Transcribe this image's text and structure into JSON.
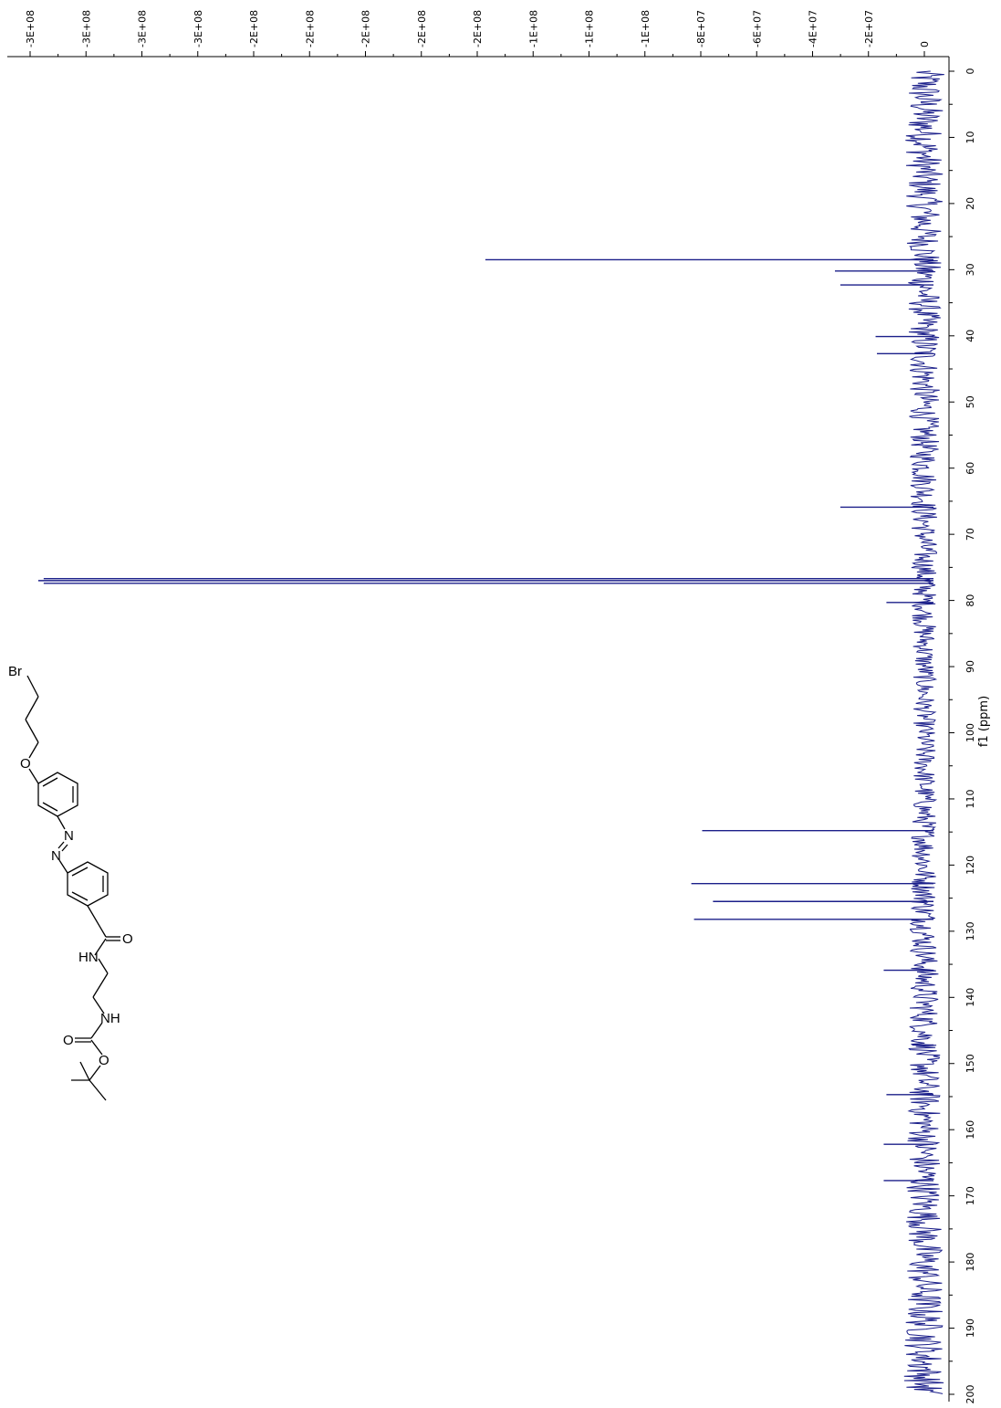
{
  "chart_data": {
    "type": "line",
    "orientation": "rotated-90-clockwise",
    "xlabel": "f1 (ppm)",
    "x_ticks": [
      0,
      10,
      20,
      30,
      40,
      50,
      60,
      70,
      80,
      90,
      100,
      110,
      120,
      130,
      140,
      150,
      160,
      170,
      180,
      190,
      200
    ],
    "xlim": [
      0,
      200
    ],
    "y_ticks": [
      "-3E+08",
      "-3E+08",
      "-3E+08",
      "-3E+08",
      "-2E+08",
      "-2E+08",
      "-2E+08",
      "-2E+08",
      "-2E+08",
      "-1E+08",
      "-1E+08",
      "-1E+08",
      "-8E+07",
      "-6E+07",
      "-4E+07",
      "-2E+07",
      "0"
    ],
    "ylim": [
      0,
      -320000000
    ],
    "series": [
      {
        "color": "#1b1f8a",
        "peaks": [
          {
            "ppm": 28.5,
            "intensity": -162000000
          },
          {
            "ppm": 30.2,
            "intensity": -33000000
          },
          {
            "ppm": 32.3,
            "intensity": -31000000
          },
          {
            "ppm": 40.1,
            "intensity": -18000000
          },
          {
            "ppm": 42.7,
            "intensity": -17500000
          },
          {
            "ppm": 65.9,
            "intensity": -31000000
          },
          {
            "ppm": 76.7,
            "intensity": -325000000
          },
          {
            "ppm": 77.0,
            "intensity": -327000000
          },
          {
            "ppm": 77.4,
            "intensity": -325000000
          },
          {
            "ppm": 80.3,
            "intensity": -14000000
          },
          {
            "ppm": 114.8,
            "intensity": -82000000
          },
          {
            "ppm": 122.8,
            "intensity": -86000000
          },
          {
            "ppm": 125.5,
            "intensity": -78000000
          },
          {
            "ppm": 128.2,
            "intensity": -85000000
          },
          {
            "ppm": 135.9,
            "intensity": -15000000
          },
          {
            "ppm": 147.2,
            "intensity": -4500000
          },
          {
            "ppm": 154.7,
            "intensity": -14000000
          },
          {
            "ppm": 162.2,
            "intensity": -15000000
          },
          {
            "ppm": 167.7,
            "intensity": -15000000
          }
        ]
      }
    ]
  },
  "molecule": {
    "atoms": {
      "br": "Br",
      "o_ether": "O",
      "n1": "N",
      "n2": "N",
      "o_amide": "O",
      "nh_amide": "HN",
      "nh_carbamate": "NH",
      "o_carbonyl": "O",
      "o_ester": "O"
    }
  }
}
